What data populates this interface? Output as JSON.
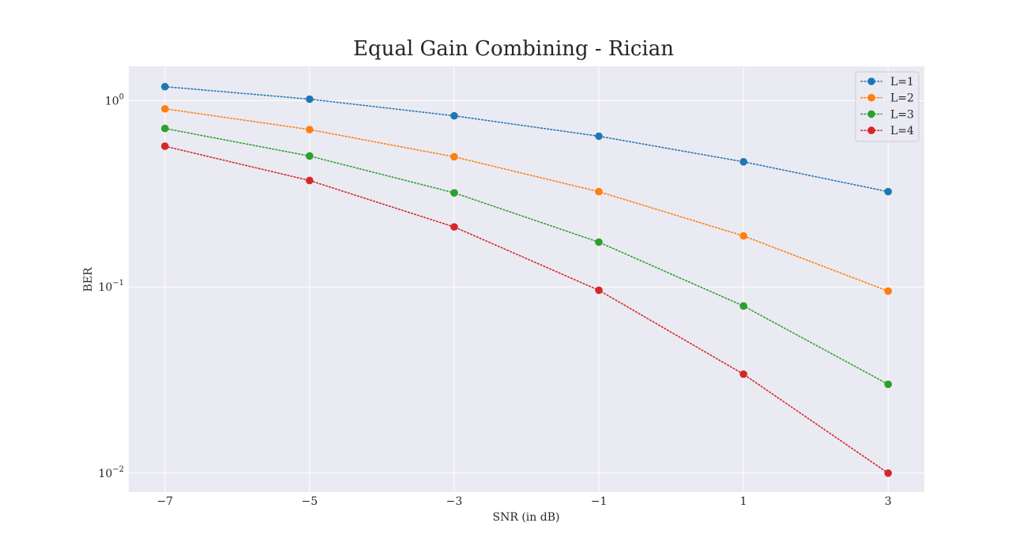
{
  "chart_data": {
    "type": "line",
    "title": "Equal Gain Combining - Rician",
    "xlabel": "SNR (in dB)",
    "ylabel": "BER",
    "x": [
      -7,
      -5,
      -3,
      -1,
      1,
      3
    ],
    "x_tick_labels": [
      "−7",
      "−5",
      "−3",
      "−1",
      "1",
      "3"
    ],
    "y_scale": "log",
    "y_ticks": [
      {
        "base": "10",
        "exp": "0"
      },
      {
        "base": "10",
        "exp": "−1"
      },
      {
        "base": "10",
        "exp": "−2"
      }
    ],
    "xlim": [
      -7.5,
      3.5
    ],
    "ylim": [
      0.0079,
      1.53
    ],
    "grid": true,
    "legend_position": "top-right",
    "line_style": "dotted",
    "marker": "circle",
    "series": [
      {
        "name": "L=1",
        "color": "#1f77b4",
        "values": [
          1.19,
          1.02,
          0.83,
          0.645,
          0.47,
          0.325
        ]
      },
      {
        "name": "L=2",
        "color": "#ff7f0e",
        "values": [
          0.905,
          0.7,
          0.5,
          0.325,
          0.188,
          0.095
        ]
      },
      {
        "name": "L=3",
        "color": "#2ca02c",
        "values": [
          0.71,
          0.505,
          0.32,
          0.174,
          0.079,
          0.03
        ]
      },
      {
        "name": "L=4",
        "color": "#d62728",
        "values": [
          0.57,
          0.373,
          0.21,
          0.096,
          0.034,
          0.01
        ]
      }
    ]
  }
}
